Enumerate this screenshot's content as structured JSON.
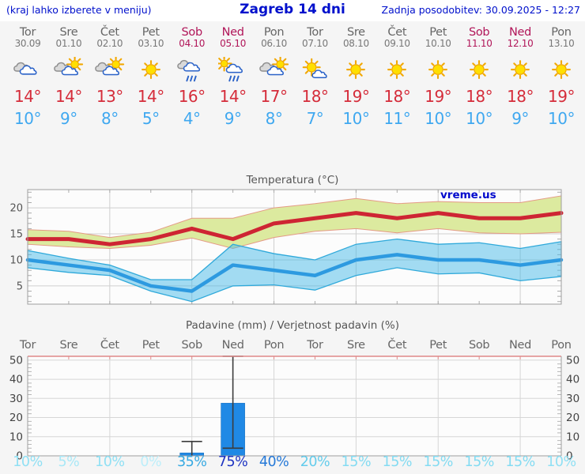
{
  "header": {
    "hint": "(kraj lahko izberete v meniju)",
    "title": "Zagreb 14 dni",
    "updated": "Zadnja posodobitev: 30.09.2025 - 12:27"
  },
  "watermark": "vreme.us",
  "days": [
    {
      "name": "Tor",
      "date": "30.09",
      "weekend": false,
      "icon": "cloudy",
      "hi": "14°",
      "lo": "10°",
      "precip_prob": "10%"
    },
    {
      "name": "Sre",
      "date": "01.10",
      "weekend": false,
      "icon": "partly-sunny",
      "hi": "14°",
      "lo": "9°",
      "precip_prob": "5%"
    },
    {
      "name": "Čet",
      "date": "02.10",
      "weekend": false,
      "icon": "partly-sunny",
      "hi": "13°",
      "lo": "8°",
      "precip_prob": "10%"
    },
    {
      "name": "Pet",
      "date": "03.10",
      "weekend": false,
      "icon": "sunny",
      "hi": "14°",
      "lo": "5°",
      "precip_prob": "0%"
    },
    {
      "name": "Sob",
      "date": "04.10",
      "weekend": true,
      "icon": "rain",
      "hi": "16°",
      "lo": "4°",
      "precip_prob": "35%"
    },
    {
      "name": "Ned",
      "date": "05.10",
      "weekend": true,
      "icon": "sun-rain",
      "hi": "14°",
      "lo": "9°",
      "precip_prob": "75%"
    },
    {
      "name": "Pon",
      "date": "06.10",
      "weekend": false,
      "icon": "partly-sunny",
      "hi": "17°",
      "lo": "8°",
      "precip_prob": "40%"
    },
    {
      "name": "Tor",
      "date": "07.10",
      "weekend": false,
      "icon": "mostly-sunny",
      "hi": "18°",
      "lo": "7°",
      "precip_prob": "20%"
    },
    {
      "name": "Sre",
      "date": "08.10",
      "weekend": false,
      "icon": "sunny",
      "hi": "19°",
      "lo": "10°",
      "precip_prob": "15%"
    },
    {
      "name": "Čet",
      "date": "09.10",
      "weekend": false,
      "icon": "sunny",
      "hi": "18°",
      "lo": "11°",
      "precip_prob": "15%"
    },
    {
      "name": "Pet",
      "date": "10.10",
      "weekend": false,
      "icon": "sunny",
      "hi": "19°",
      "lo": "10°",
      "precip_prob": "15%"
    },
    {
      "name": "Sob",
      "date": "11.10",
      "weekend": true,
      "icon": "sunny",
      "hi": "18°",
      "lo": "10°",
      "precip_prob": "15%"
    },
    {
      "name": "Ned",
      "date": "12.10",
      "weekend": true,
      "icon": "sunny",
      "hi": "18°",
      "lo": "9°",
      "precip_prob": "15%"
    },
    {
      "name": "Pon",
      "date": "13.10",
      "weekend": false,
      "icon": "sunny",
      "hi": "19°",
      "lo": "10°",
      "precip_prob": "10%"
    }
  ],
  "chart_data": [
    {
      "type": "line",
      "title": "Temperatura (°C)",
      "x": [
        "Tor 30.09",
        "Sre 01.10",
        "Čet 02.10",
        "Pet 03.10",
        "Sob 04.10",
        "Ned 05.10",
        "Pon 06.10",
        "Tor 07.10",
        "Sre 08.10",
        "Čet 09.10",
        "Pet 10.10",
        "Sob 11.10",
        "Ned 12.10",
        "Pon 13.10"
      ],
      "series": [
        {
          "name": "max_temp",
          "values": [
            14,
            14,
            13,
            14,
            16,
            14,
            17,
            18,
            19,
            18,
            19,
            18,
            18,
            19
          ]
        },
        {
          "name": "max_range_high",
          "values": [
            15.8,
            15.5,
            14.3,
            15.3,
            18,
            18,
            20,
            20.8,
            21.8,
            20.8,
            21.2,
            21,
            21,
            22.3
          ]
        },
        {
          "name": "max_range_low",
          "values": [
            13,
            12.5,
            12.2,
            12.8,
            14.2,
            12.2,
            14.3,
            15.5,
            16,
            15.2,
            16,
            15.2,
            15,
            15.3
          ]
        },
        {
          "name": "min_temp",
          "values": [
            10,
            9,
            8,
            5,
            4,
            9,
            8,
            7,
            10,
            11,
            10,
            10,
            9,
            10
          ]
        },
        {
          "name": "min_range_high",
          "values": [
            11.8,
            10.3,
            9,
            6.2,
            6.2,
            13,
            11.2,
            10,
            13,
            14,
            13,
            13.3,
            12.2,
            13.5
          ]
        },
        {
          "name": "min_range_low",
          "values": [
            8.5,
            7.6,
            7,
            4,
            2,
            5,
            5.2,
            4.2,
            7,
            8.5,
            7.3,
            7.5,
            6,
            6.8
          ]
        }
      ],
      "ylim": [
        1.5,
        23.5
      ],
      "yticks": [
        5,
        10,
        15,
        20
      ],
      "grid": true,
      "legend": false
    },
    {
      "type": "bar",
      "title": "Padavine (mm) / Verjetnost padavin (%)",
      "categories": [
        "Tor",
        "Sre",
        "Čet",
        "Pet",
        "Sob",
        "Ned",
        "Pon",
        "Tor",
        "Sre",
        "Čet",
        "Pet",
        "Sob",
        "Ned",
        "Pon"
      ],
      "values": [
        0,
        0,
        0,
        0,
        1.5,
        27.5,
        0,
        0,
        0,
        0,
        0,
        0,
        0,
        0
      ],
      "range_low": [
        null,
        null,
        null,
        null,
        0,
        4,
        null,
        null,
        null,
        null,
        null,
        null,
        null,
        null
      ],
      "range_high": [
        null,
        null,
        null,
        null,
        7.5,
        52,
        null,
        null,
        null,
        null,
        null,
        null,
        null,
        null
      ],
      "probabilities_pct": [
        10,
        5,
        10,
        0,
        35,
        75,
        40,
        20,
        15,
        15,
        15,
        15,
        15,
        10
      ],
      "ylim": [
        0,
        52
      ],
      "yticks": [
        0,
        10,
        20,
        30,
        40,
        50
      ],
      "grid": true
    }
  ],
  "colors": {
    "header_blue": "#0010cc",
    "weekend": "#b11659",
    "weekday": "#666666",
    "high_temp": "#d52c3a",
    "low_temp": "#3fa8f0",
    "max_line": "#ce2533",
    "max_band": "#dcea9f",
    "max_band_edge": "#e49a85",
    "min_line": "#2d9ae0",
    "min_band": "#47b9e7",
    "min_band_edge": "#2fa9da",
    "bar_fill": "#2089e5",
    "whisker": "#3c3c3c",
    "grid": "#cfcfcf",
    "frame": "#9e9e9e",
    "title_gray": "#555555",
    "precip_top_axis": "#e08a8a",
    "prob_colors": {
      "0": "#bceefa",
      "5": "#a9e8f7",
      "10": "#90e0f4",
      "15": "#83dbf2",
      "20": "#63ccec",
      "35": "#37a9e2",
      "40": "#2579d8",
      "75": "#1d33c2"
    }
  }
}
